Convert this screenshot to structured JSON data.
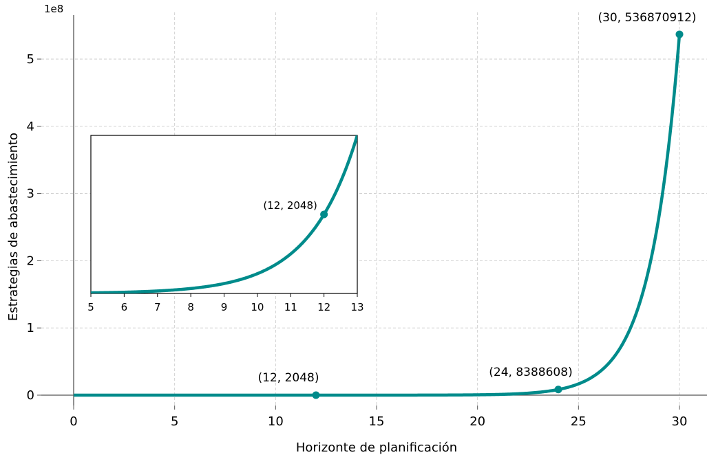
{
  "chart_data": {
    "type": "line",
    "function": "2^(x-1)",
    "x_domain": [
      0,
      30
    ],
    "xlabel": "Horizonte de planificación",
    "ylabel": "Estrategias de abastecimiento",
    "y_exponent_label": "1e8",
    "xlim": [
      0,
      30
    ],
    "ylim_scaled": [
      -0.3,
      5.6
    ],
    "x_ticks": [
      "0",
      "5",
      "10",
      "15",
      "20",
      "25",
      "30"
    ],
    "x_tick_values": [
      0,
      5,
      10,
      15,
      20,
      25,
      30
    ],
    "y_ticks": [
      "0",
      "1",
      "2",
      "3",
      "4",
      "5"
    ],
    "y_tick_values": [
      0,
      100000000,
      200000000,
      300000000,
      400000000,
      500000000
    ],
    "grid": true,
    "line_color": "#008b8b",
    "highlighted_points": [
      {
        "x": 12,
        "y": 2048,
        "label": "(12, 2048)"
      },
      {
        "x": 24,
        "y": 8388608,
        "label": "(24, 8388608)"
      },
      {
        "x": 30,
        "y": 536870912,
        "label": "(30, 536870912)"
      }
    ],
    "inset": {
      "type": "line",
      "function": "2^(x-1)",
      "xlim": [
        5,
        13
      ],
      "ylim": [
        0,
        4096
      ],
      "x_ticks": [
        "5",
        "6",
        "7",
        "8",
        "9",
        "10",
        "11",
        "12",
        "13"
      ],
      "x_tick_values": [
        5,
        6,
        7,
        8,
        9,
        10,
        11,
        12,
        13
      ],
      "highlighted_points": [
        {
          "x": 12,
          "y": 2048,
          "label": "(12, 2048)"
        }
      ]
    }
  }
}
